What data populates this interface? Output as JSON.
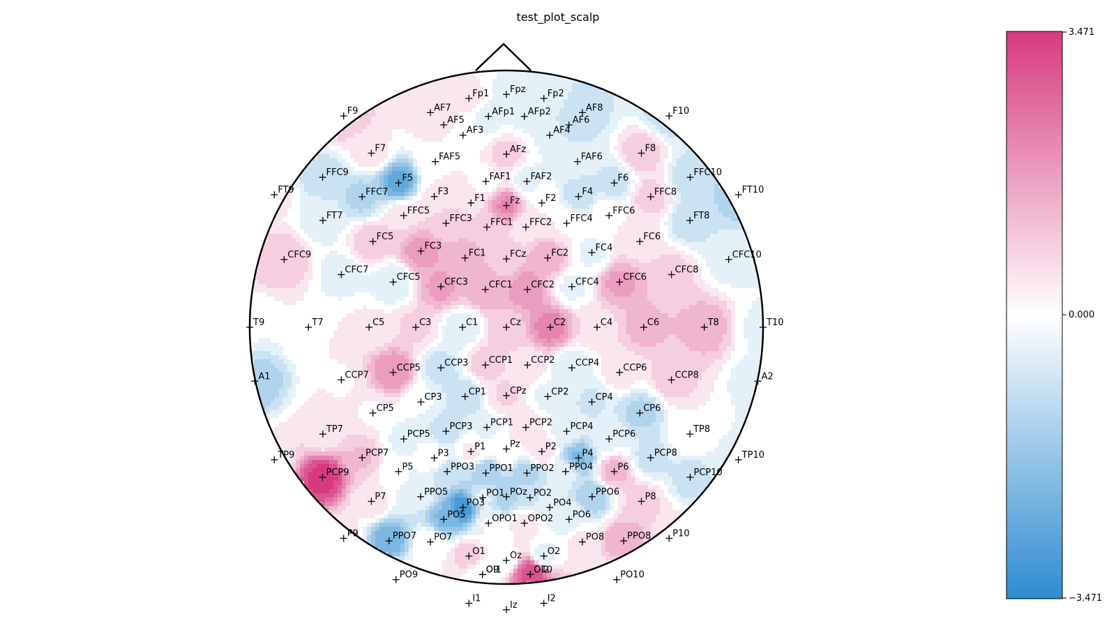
{
  "chart_data": {
    "type": "heatmap",
    "subtype": "eeg-scalp-topomap",
    "title": "test_plot_scalp",
    "colorbar": {
      "vmin": -3.471,
      "vmax": 3.471,
      "tick_labels": [
        "3.471",
        "0.000",
        "−3.471"
      ],
      "color_low": "#2e8bd0",
      "color_mid": "#ffffff",
      "color_high": "#d63a7e"
    },
    "electrodes": [
      {
        "label": "Fp1",
        "x": -0.146,
        "y": 0.891,
        "v": 0.4
      },
      {
        "label": "Fpz",
        "x": 0.0,
        "y": 0.907,
        "v": -0.3
      },
      {
        "label": "Fp2",
        "x": 0.146,
        "y": 0.891,
        "v": -0.4
      },
      {
        "label": "AF7",
        "x": -0.296,
        "y": 0.836,
        "v": 0.5
      },
      {
        "label": "AF8",
        "x": 0.296,
        "y": 0.836,
        "v": -0.9
      },
      {
        "label": "AFp1",
        "x": -0.07,
        "y": 0.821,
        "v": -0.4
      },
      {
        "label": "AFp2",
        "x": 0.07,
        "y": 0.821,
        "v": -0.3
      },
      {
        "label": "AF5",
        "x": -0.244,
        "y": 0.788,
        "v": 0.3
      },
      {
        "label": "AF6",
        "x": 0.244,
        "y": 0.788,
        "v": -0.8
      },
      {
        "label": "AF3",
        "x": -0.169,
        "y": 0.748,
        "v": -0.1
      },
      {
        "label": "AF4",
        "x": 0.169,
        "y": 0.748,
        "v": -0.3
      },
      {
        "label": "AFz",
        "x": 0.0,
        "y": 0.674,
        "v": 0.8
      },
      {
        "label": "F9",
        "x": -0.634,
        "y": 0.823,
        "v": 1.0
      },
      {
        "label": "F10",
        "x": 0.634,
        "y": 0.823,
        "v": -0.9
      },
      {
        "label": "F7",
        "x": -0.526,
        "y": 0.678,
        "v": 0.4
      },
      {
        "label": "F8",
        "x": 0.526,
        "y": 0.678,
        "v": 0.9
      },
      {
        "label": "FAF5",
        "x": -0.277,
        "y": 0.645,
        "v": 0.2
      },
      {
        "label": "FAF6",
        "x": 0.277,
        "y": 0.645,
        "v": -0.6
      },
      {
        "label": "F5",
        "x": -0.42,
        "y": 0.562,
        "v": -2.5
      },
      {
        "label": "F6",
        "x": 0.42,
        "y": 0.562,
        "v": -0.8
      },
      {
        "label": "FFC9",
        "x": -0.716,
        "y": 0.584,
        "v": -0.9
      },
      {
        "label": "FFC10",
        "x": 0.716,
        "y": 0.584,
        "v": -0.9
      },
      {
        "label": "FAF1",
        "x": -0.08,
        "y": 0.568,
        "v": 0.0
      },
      {
        "label": "FAF2",
        "x": 0.08,
        "y": 0.568,
        "v": -0.4
      },
      {
        "label": "FT9",
        "x": -0.904,
        "y": 0.516,
        "v": 0.3
      },
      {
        "label": "FT10",
        "x": 0.904,
        "y": 0.516,
        "v": -1.3
      },
      {
        "label": "FFC7",
        "x": -0.562,
        "y": 0.508,
        "v": -1.2
      },
      {
        "label": "FFC8",
        "x": 0.562,
        "y": 0.508,
        "v": 0.8
      },
      {
        "label": "F3",
        "x": -0.281,
        "y": 0.509,
        "v": 0.3
      },
      {
        "label": "F4",
        "x": 0.281,
        "y": 0.509,
        "v": -0.9
      },
      {
        "label": "F1",
        "x": -0.138,
        "y": 0.484,
        "v": 0.6
      },
      {
        "label": "F2",
        "x": 0.138,
        "y": 0.484,
        "v": 0.2
      },
      {
        "label": "Fz",
        "x": 0.0,
        "y": 0.474,
        "v": 2.0
      },
      {
        "label": "FFC5",
        "x": -0.4,
        "y": 0.435,
        "v": 0.6
      },
      {
        "label": "FFC6",
        "x": 0.4,
        "y": 0.435,
        "v": 0.2
      },
      {
        "label": "FFC3",
        "x": -0.235,
        "y": 0.405,
        "v": 0.9
      },
      {
        "label": "FFC4",
        "x": 0.235,
        "y": 0.405,
        "v": 0.2
      },
      {
        "label": "FFC1",
        "x": -0.076,
        "y": 0.39,
        "v": 0.8
      },
      {
        "label": "FFC2",
        "x": 0.076,
        "y": 0.39,
        "v": 0.4
      },
      {
        "label": "FT7",
        "x": -0.715,
        "y": 0.416,
        "v": -0.4
      },
      {
        "label": "FT8",
        "x": 0.715,
        "y": 0.416,
        "v": -0.9
      },
      {
        "label": "FC5",
        "x": -0.52,
        "y": 0.334,
        "v": 0.9
      },
      {
        "label": "FC6",
        "x": 0.52,
        "y": 0.334,
        "v": 0.5
      },
      {
        "label": "FC3",
        "x": -0.333,
        "y": 0.297,
        "v": 1.7
      },
      {
        "label": "FC4",
        "x": 0.333,
        "y": 0.291,
        "v": -0.3
      },
      {
        "label": "FC1",
        "x": -0.161,
        "y": 0.27,
        "v": 1.3
      },
      {
        "label": "FC2",
        "x": 0.161,
        "y": 0.27,
        "v": 1.4
      },
      {
        "label": "FCz",
        "x": 0.0,
        "y": 0.266,
        "v": 0.9
      },
      {
        "label": "CFC9",
        "x": -0.866,
        "y": 0.264,
        "v": 1.0
      },
      {
        "label": "CFC10",
        "x": 0.866,
        "y": 0.264,
        "v": -0.4
      },
      {
        "label": "CFC7",
        "x": -0.643,
        "y": 0.205,
        "v": -0.4
      },
      {
        "label": "CFC8",
        "x": 0.643,
        "y": 0.205,
        "v": 0.8
      },
      {
        "label": "CFC5",
        "x": -0.441,
        "y": 0.176,
        "v": -0.6
      },
      {
        "label": "CFC6",
        "x": 0.441,
        "y": 0.176,
        "v": 1.6
      },
      {
        "label": "CFC3",
        "x": -0.255,
        "y": 0.158,
        "v": 1.6
      },
      {
        "label": "CFC4",
        "x": 0.255,
        "y": 0.158,
        "v": -0.3
      },
      {
        "label": "CFC1",
        "x": -0.082,
        "y": 0.147,
        "v": 1.4
      },
      {
        "label": "CFC2",
        "x": 0.082,
        "y": 0.147,
        "v": 1.8
      },
      {
        "label": "T9",
        "x": -1.0,
        "y": 0.0,
        "v": -0.2
      },
      {
        "label": "T10",
        "x": 1.0,
        "y": 0.0,
        "v": -0.3
      },
      {
        "label": "T7",
        "x": -0.771,
        "y": 0.0,
        "v": 0.2
      },
      {
        "label": "T8",
        "x": 0.771,
        "y": 0.0,
        "v": 1.3
      },
      {
        "label": "C5",
        "x": -0.535,
        "y": 0.0,
        "v": 0.3
      },
      {
        "label": "C6",
        "x": 0.535,
        "y": 0.0,
        "v": 1.2
      },
      {
        "label": "C3",
        "x": -0.353,
        "y": 0.0,
        "v": 0.7
      },
      {
        "label": "C4",
        "x": 0.353,
        "y": 0.0,
        "v": 0.5
      },
      {
        "label": "C1",
        "x": -0.171,
        "y": 0.0,
        "v": -0.5
      },
      {
        "label": "C2",
        "x": 0.171,
        "y": 0.0,
        "v": 2.1
      },
      {
        "label": "Cz",
        "x": 0.0,
        "y": 0.0,
        "v": 0.9
      },
      {
        "label": "CCP7",
        "x": -0.643,
        "y": -0.205,
        "v": 0.2
      },
      {
        "label": "CCP8",
        "x": 0.643,
        "y": -0.205,
        "v": 0.8
      },
      {
        "label": "CCP5",
        "x": -0.441,
        "y": -0.176,
        "v": 1.9
      },
      {
        "label": "CCP6",
        "x": 0.441,
        "y": -0.176,
        "v": 0.4
      },
      {
        "label": "CCP3",
        "x": -0.255,
        "y": -0.158,
        "v": -0.8
      },
      {
        "label": "CCP4",
        "x": 0.255,
        "y": -0.158,
        "v": -0.6
      },
      {
        "label": "CCP1",
        "x": -0.082,
        "y": -0.147,
        "v": 0.8
      },
      {
        "label": "CCP2",
        "x": 0.082,
        "y": -0.147,
        "v": 0.5
      },
      {
        "label": "A1",
        "x": -0.98,
        "y": -0.21,
        "v": -1.4
      },
      {
        "label": "A2",
        "x": 0.98,
        "y": -0.21,
        "v": -0.4
      },
      {
        "label": "CP5",
        "x": -0.52,
        "y": -0.334,
        "v": 0.2
      },
      {
        "label": "CP6",
        "x": 0.52,
        "y": -0.334,
        "v": -1.2
      },
      {
        "label": "CP3",
        "x": -0.333,
        "y": -0.291,
        "v": -0.2
      },
      {
        "label": "CP4",
        "x": 0.333,
        "y": -0.291,
        "v": -0.7
      },
      {
        "label": "CP1",
        "x": -0.161,
        "y": -0.27,
        "v": -1.0
      },
      {
        "label": "CP2",
        "x": 0.161,
        "y": -0.27,
        "v": -0.3
      },
      {
        "label": "CPz",
        "x": 0.0,
        "y": -0.266,
        "v": 0.7
      },
      {
        "label": "TP7",
        "x": -0.715,
        "y": -0.416,
        "v": 0.4
      },
      {
        "label": "TP8",
        "x": 0.715,
        "y": -0.416,
        "v": 0.2
      },
      {
        "label": "PCP5",
        "x": -0.4,
        "y": -0.435,
        "v": -0.3
      },
      {
        "label": "PCP6",
        "x": 0.4,
        "y": -0.435,
        "v": -0.3
      },
      {
        "label": "PCP3",
        "x": -0.235,
        "y": -0.405,
        "v": -0.9
      },
      {
        "label": "PCP4",
        "x": 0.235,
        "y": -0.405,
        "v": -0.4
      },
      {
        "label": "PCP1",
        "x": -0.076,
        "y": -0.39,
        "v": -0.3
      },
      {
        "label": "PCP2",
        "x": 0.076,
        "y": -0.39,
        "v": 0.6
      },
      {
        "label": "TP9",
        "x": -0.904,
        "y": -0.516,
        "v": 0.3
      },
      {
        "label": "TP10",
        "x": 0.904,
        "y": -0.516,
        "v": -0.4
      },
      {
        "label": "PCP7",
        "x": -0.562,
        "y": -0.508,
        "v": 1.1
      },
      {
        "label": "PCP8",
        "x": 0.562,
        "y": -0.508,
        "v": -0.8
      },
      {
        "label": "P3",
        "x": -0.281,
        "y": -0.509,
        "v": 0.1
      },
      {
        "label": "P4",
        "x": 0.281,
        "y": -0.509,
        "v": -2.0
      },
      {
        "label": "P1",
        "x": -0.138,
        "y": -0.484,
        "v": 0.3
      },
      {
        "label": "P2",
        "x": 0.138,
        "y": -0.484,
        "v": 0.5
      },
      {
        "label": "Pz",
        "x": 0.0,
        "y": -0.474,
        "v": 0.2
      },
      {
        "label": "PCP9",
        "x": -0.716,
        "y": -0.584,
        "v": 3.4
      },
      {
        "label": "PCP10",
        "x": 0.716,
        "y": -0.584,
        "v": -0.8
      },
      {
        "label": "P5",
        "x": -0.42,
        "y": -0.562,
        "v": -0.2
      },
      {
        "label": "P6",
        "x": 0.42,
        "y": -0.562,
        "v": 1.2
      },
      {
        "label": "PPO3",
        "x": -0.231,
        "y": -0.562,
        "v": -0.9
      },
      {
        "label": "PPO4",
        "x": 0.231,
        "y": -0.562,
        "v": -0.5
      },
      {
        "label": "PPO1",
        "x": -0.08,
        "y": -0.568,
        "v": -1.4
      },
      {
        "label": "PPO2",
        "x": 0.08,
        "y": -0.568,
        "v": -1.3
      },
      {
        "label": "P7",
        "x": -0.526,
        "y": -0.678,
        "v": 0.4
      },
      {
        "label": "P8",
        "x": 0.526,
        "y": -0.678,
        "v": 0.8
      },
      {
        "label": "PPO5",
        "x": -0.334,
        "y": -0.66,
        "v": -0.5
      },
      {
        "label": "PPO6",
        "x": 0.334,
        "y": -0.66,
        "v": -1.4
      },
      {
        "label": "PO1",
        "x": -0.092,
        "y": -0.664,
        "v": -0.6
      },
      {
        "label": "POz",
        "x": 0.0,
        "y": -0.66,
        "v": -1.3
      },
      {
        "label": "PO2",
        "x": 0.092,
        "y": -0.664,
        "v": -0.7
      },
      {
        "label": "PO3",
        "x": -0.169,
        "y": -0.702,
        "v": -3.0
      },
      {
        "label": "PO4",
        "x": 0.169,
        "y": -0.702,
        "v": -0.3
      },
      {
        "label": "PO5",
        "x": -0.244,
        "y": -0.748,
        "v": -2.0
      },
      {
        "label": "PO6",
        "x": 0.244,
        "y": -0.748,
        "v": -0.4
      },
      {
        "label": "OPO1",
        "x": -0.07,
        "y": -0.763,
        "v": -0.2
      },
      {
        "label": "OPO2",
        "x": 0.07,
        "y": -0.763,
        "v": 0.4
      },
      {
        "label": "P9",
        "x": -0.634,
        "y": -0.822,
        "v": 0.4
      },
      {
        "label": "P10",
        "x": 0.634,
        "y": -0.822,
        "v": 0.5
      },
      {
        "label": "PPO7",
        "x": -0.457,
        "y": -0.832,
        "v": -2.2
      },
      {
        "label": "PPO8",
        "x": 0.457,
        "y": -0.832,
        "v": 1.5
      },
      {
        "label": "PO7",
        "x": -0.296,
        "y": -0.836,
        "v": 0.2
      },
      {
        "label": "PO8",
        "x": 0.296,
        "y": -0.836,
        "v": 0.3
      },
      {
        "label": "O1",
        "x": -0.146,
        "y": -0.891,
        "v": 0.9
      },
      {
        "label": "Oz",
        "x": 0.0,
        "y": -0.908,
        "v": -0.1
      },
      {
        "label": "O2",
        "x": 0.146,
        "y": -0.891,
        "v": -0.4
      },
      {
        "label": "PO9",
        "x": -0.43,
        "y": -0.983,
        "v": 0.5
      },
      {
        "label": "PO10",
        "x": 0.43,
        "y": -0.983,
        "v": 0.3
      },
      {
        "label": "O9",
        "x": -0.093,
        "y": -0.963,
        "v": -0.1
      },
      {
        "label": "OI1",
        "x": -0.093,
        "y": -0.963,
        "v": -0.1
      },
      {
        "label": "OI2",
        "x": 0.093,
        "y": -0.963,
        "v": 3.0
      },
      {
        "label": "O10",
        "x": 0.093,
        "y": -0.963,
        "v": 3.0
      },
      {
        "label": "I1",
        "x": -0.146,
        "y": -1.075,
        "v": 0.6
      },
      {
        "label": "Iz",
        "x": 0.0,
        "y": -1.1,
        "v": 0.3
      },
      {
        "label": "I2",
        "x": 0.146,
        "y": -1.075,
        "v": 0.5
      }
    ]
  }
}
